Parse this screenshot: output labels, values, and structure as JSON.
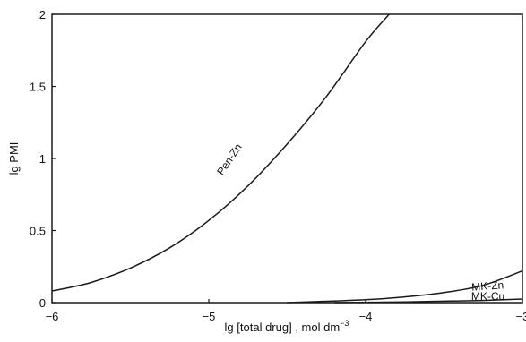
{
  "chart_data": {
    "type": "line",
    "xlabel": "lg [total drug] ,  mol dm",
    "xlabel_superscript": "−3",
    "ylabel": "lg PMI",
    "xlim": [
      -6,
      -3
    ],
    "ylim": [
      0,
      2
    ],
    "x_ticks": [
      -6,
      -5,
      -4,
      -3
    ],
    "x_tick_labels": [
      "−6",
      "−5",
      "−4",
      "−3"
    ],
    "y_ticks": [
      0,
      0.5,
      1,
      1.5,
      2
    ],
    "y_tick_labels": [
      "0",
      "0.5",
      "1",
      "1.5",
      "2"
    ],
    "grid": false,
    "series": [
      {
        "name": "Pen-Zn",
        "x": [
          -6.0,
          -5.75,
          -5.5,
          -5.25,
          -5.0,
          -4.75,
          -4.5,
          -4.25,
          -4.0,
          -3.85
        ],
        "y": [
          0.08,
          0.14,
          0.24,
          0.38,
          0.57,
          0.81,
          1.1,
          1.43,
          1.81,
          2.0
        ]
      },
      {
        "name": "MK-Zn",
        "x": [
          -4.5,
          -4.0,
          -3.75,
          -3.5,
          -3.25,
          -3.0
        ],
        "y": [
          0.0,
          0.02,
          0.04,
          0.07,
          0.12,
          0.22
        ]
      },
      {
        "name": "MK-Cu",
        "x": [
          -4.2,
          -3.75,
          -3.5,
          -3.25,
          -3.0
        ],
        "y": [
          0.0,
          0.005,
          0.01,
          0.015,
          0.025
        ]
      }
    ]
  }
}
